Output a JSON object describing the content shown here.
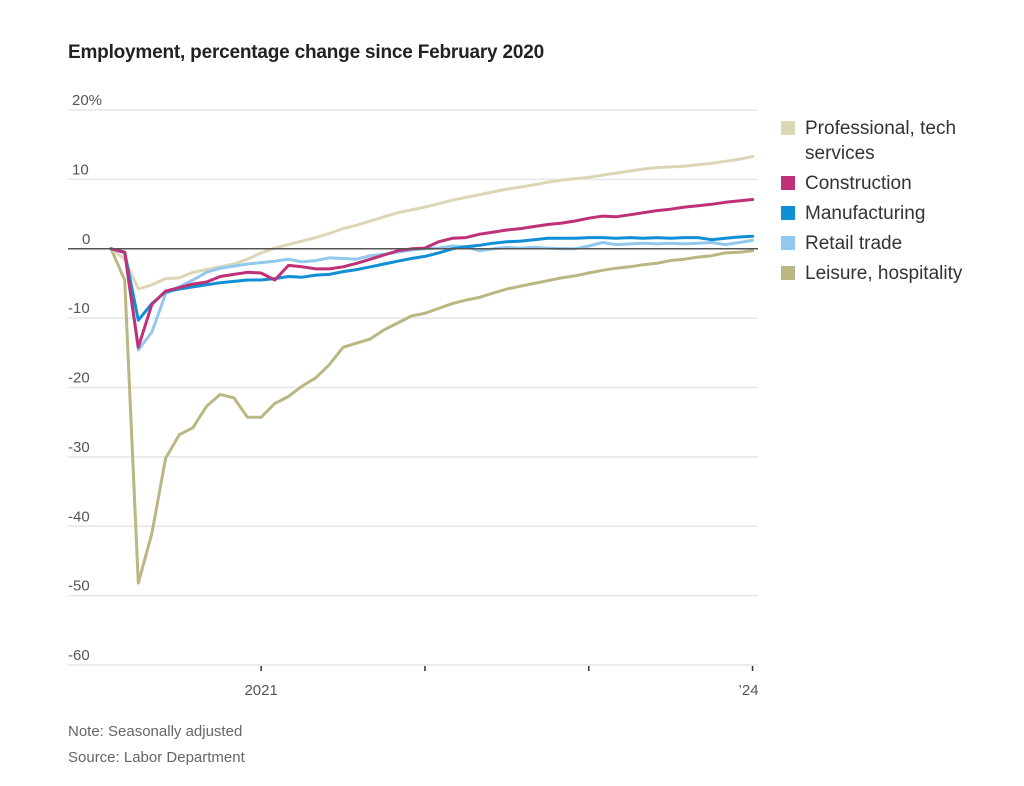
{
  "chart_data": {
    "type": "line",
    "title": "Employment, percentage change since February 2020",
    "xlabel": "",
    "ylabel": "",
    "ylim": [
      -60,
      20
    ],
    "y_ticks": [
      20,
      10,
      0,
      -10,
      -20,
      -30,
      -40,
      -50,
      -60
    ],
    "y_tick_labels": [
      "20%",
      "10",
      "0",
      "-10",
      "-20",
      "-30",
      "-40",
      "-50",
      "-60"
    ],
    "x_start": "2020-02",
    "x_end": "2024-01",
    "x_ticks": [
      {
        "month_index": 11,
        "label": "2021"
      },
      {
        "month_index": 23,
        "label": ""
      },
      {
        "month_index": 35,
        "label": ""
      },
      {
        "month_index": 47,
        "label": "’24"
      }
    ],
    "grid": true,
    "legend_position": "right",
    "series": [
      {
        "name": "Professional, tech services",
        "color": "#ddd6b6",
        "values": [
          0,
          -1.5,
          -5.8,
          -5.2,
          -4.3,
          -4.2,
          -3.4,
          -3.0,
          -2.6,
          -2.2,
          -1.5,
          -0.6,
          0.1,
          0.6,
          1.1,
          1.6,
          2.2,
          2.9,
          3.4,
          4.0,
          4.6,
          5.2,
          5.6,
          6.0,
          6.5,
          7.0,
          7.4,
          7.8,
          8.2,
          8.6,
          8.9,
          9.2,
          9.6,
          9.9,
          10.1,
          10.3,
          10.6,
          10.9,
          11.2,
          11.5,
          11.7,
          11.8,
          11.9,
          12.1,
          12.3,
          12.6,
          12.9,
          13.3
        ]
      },
      {
        "name": "Construction",
        "color": "#c03078",
        "values": [
          0,
          -0.5,
          -14.2,
          -8.0,
          -6.1,
          -5.6,
          -5.1,
          -4.8,
          -4.0,
          -3.7,
          -3.4,
          -3.5,
          -4.5,
          -2.4,
          -2.6,
          -2.9,
          -2.9,
          -2.6,
          -2.1,
          -1.5,
          -0.9,
          -0.3,
          0.0,
          0.1,
          1.0,
          1.5,
          1.6,
          2.1,
          2.4,
          2.7,
          2.9,
          3.2,
          3.5,
          3.7,
          4.0,
          4.4,
          4.7,
          4.6,
          4.9,
          5.2,
          5.5,
          5.7,
          6.0,
          6.2,
          6.4,
          6.7,
          6.9,
          7.1
        ]
      },
      {
        "name": "Manufacturing",
        "color": "#0f8fd6",
        "values": [
          0,
          -0.5,
          -10.3,
          -7.9,
          -6.2,
          -5.8,
          -5.5,
          -5.2,
          -4.9,
          -4.7,
          -4.5,
          -4.5,
          -4.3,
          -4.0,
          -4.1,
          -3.8,
          -3.7,
          -3.3,
          -3.0,
          -2.6,
          -2.2,
          -1.8,
          -1.4,
          -1.1,
          -0.6,
          0.0,
          0.3,
          0.5,
          0.8,
          1.0,
          1.1,
          1.3,
          1.5,
          1.5,
          1.5,
          1.6,
          1.6,
          1.5,
          1.6,
          1.5,
          1.6,
          1.5,
          1.6,
          1.6,
          1.3,
          1.5,
          1.7,
          1.8
        ]
      },
      {
        "name": "Retail trade",
        "color": "#92c8ee",
        "values": [
          0,
          -0.6,
          -14.6,
          -12.0,
          -6.5,
          -5.5,
          -4.5,
          -3.4,
          -2.8,
          -2.5,
          -2.2,
          -2.0,
          -1.8,
          -1.5,
          -1.9,
          -1.7,
          -1.3,
          -1.4,
          -1.5,
          -1.0,
          -0.8,
          -0.5,
          -0.2,
          0.0,
          0.1,
          0.4,
          0.3,
          -0.3,
          0.0,
          0.2,
          0.1,
          0.2,
          0.1,
          0.0,
          0.0,
          0.4,
          0.9,
          0.6,
          0.7,
          0.8,
          0.7,
          0.8,
          0.7,
          0.8,
          0.9,
          0.6,
          0.9,
          1.2
        ]
      },
      {
        "name": "Leisure, hospitality",
        "color": "#bab782",
        "values": [
          0,
          -4.5,
          -48.2,
          -41.0,
          -30.2,
          -26.8,
          -25.8,
          -22.7,
          -21.0,
          -21.5,
          -24.3,
          -24.3,
          -22.3,
          -21.3,
          -19.8,
          -18.6,
          -16.7,
          -14.2,
          -13.6,
          -13.0,
          -11.7,
          -10.7,
          -9.7,
          -9.3,
          -8.6,
          -7.9,
          -7.4,
          -7.0,
          -6.4,
          -5.8,
          -5.4,
          -5.0,
          -4.6,
          -4.2,
          -3.9,
          -3.5,
          -3.1,
          -2.8,
          -2.6,
          -2.3,
          -2.1,
          -1.7,
          -1.5,
          -1.2,
          -1.0,
          -0.6,
          -0.5,
          -0.3
        ]
      }
    ]
  },
  "legend": {
    "items": [
      {
        "label": "Professional, tech services",
        "color": "#ddd6b6"
      },
      {
        "label": "Construction",
        "color": "#c03078"
      },
      {
        "label": "Manufacturing",
        "color": "#0f8fd6"
      },
      {
        "label": "Retail trade",
        "color": "#92c8ee"
      },
      {
        "label": "Leisure, hospitality",
        "color": "#bab782"
      }
    ]
  },
  "footer": {
    "note": "Note: Seasonally adjusted",
    "source": "Source: Labor Department"
  }
}
